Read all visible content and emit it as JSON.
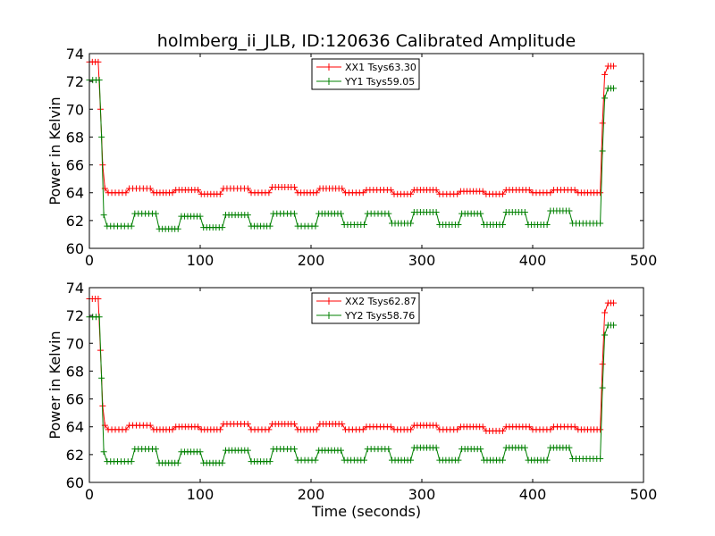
{
  "title": "holmberg_ii_JLB, ID:120636 Calibrated Amplitude",
  "chart_data": [
    {
      "type": "line",
      "title": "holmberg_ii_JLB, ID:120636 Calibrated Amplitude",
      "xlabel": "",
      "ylabel": "Power in Kelvin",
      "xlim": [
        0,
        500
      ],
      "ylim": [
        60,
        74
      ],
      "xticks": [
        "0",
        "100",
        "200",
        "300",
        "400",
        "500"
      ],
      "yticks": [
        "60",
        "62",
        "64",
        "66",
        "68",
        "70",
        "72",
        "74"
      ],
      "legend_position": "top-center",
      "grid": false,
      "series": [
        {
          "name": "XX1 Tsys63.30",
          "color": "#ff0000",
          "segments": [
            [
              0,
              73.4
            ],
            [
              8,
              73.4
            ],
            [
              10,
              70
            ],
            [
              12,
              66
            ],
            [
              14,
              64.3
            ],
            [
              17,
              64
            ],
            [
              33,
              64
            ],
            [
              36,
              64.3
            ],
            [
              55,
              64.3
            ],
            [
              58,
              64
            ],
            [
              75,
              64
            ],
            [
              78,
              64.2
            ],
            [
              98,
              64.2
            ],
            [
              101,
              63.9
            ],
            [
              118,
              63.9
            ],
            [
              121,
              64.3
            ],
            [
              143,
              64.3
            ],
            [
              146,
              64
            ],
            [
              162,
              64
            ],
            [
              165,
              64.4
            ],
            [
              185,
              64.4
            ],
            [
              188,
              64
            ],
            [
              205,
              64
            ],
            [
              208,
              64.3
            ],
            [
              228,
              64.3
            ],
            [
              231,
              64
            ],
            [
              247,
              64
            ],
            [
              250,
              64.2
            ],
            [
              272,
              64.2
            ],
            [
              275,
              63.9
            ],
            [
              290,
              63.9
            ],
            [
              293,
              64.2
            ],
            [
              313,
              64.2
            ],
            [
              316,
              63.9
            ],
            [
              332,
              63.9
            ],
            [
              335,
              64.1
            ],
            [
              355,
              64.1
            ],
            [
              358,
              63.9
            ],
            [
              373,
              63.9
            ],
            [
              376,
              64.2
            ],
            [
              397,
              64.2
            ],
            [
              400,
              64
            ],
            [
              416,
              64
            ],
            [
              419,
              64.2
            ],
            [
              438,
              64.2
            ],
            [
              441,
              64
            ],
            [
              461,
              64
            ],
            [
              463,
              69
            ],
            [
              465,
              72.5
            ],
            [
              468,
              73.1
            ],
            [
              473,
              73.1
            ]
          ]
        },
        {
          "name": "YY1 Tsys59.05",
          "color": "#008000",
          "segments": [
            [
              0,
              72.1
            ],
            [
              9,
              72.1
            ],
            [
              11,
              68
            ],
            [
              13,
              62.4
            ],
            [
              16,
              61.6
            ],
            [
              38,
              61.6
            ],
            [
              41,
              62.5
            ],
            [
              60,
              62.5
            ],
            [
              63,
              61.4
            ],
            [
              80,
              61.4
            ],
            [
              83,
              62.3
            ],
            [
              100,
              62.3
            ],
            [
              103,
              61.5
            ],
            [
              120,
              61.5
            ],
            [
              123,
              62.4
            ],
            [
              143,
              62.4
            ],
            [
              146,
              61.6
            ],
            [
              163,
              61.6
            ],
            [
              166,
              62.5
            ],
            [
              185,
              62.5
            ],
            [
              188,
              61.6
            ],
            [
              204,
              61.6
            ],
            [
              207,
              62.5
            ],
            [
              227,
              62.5
            ],
            [
              230,
              61.7
            ],
            [
              248,
              61.7
            ],
            [
              251,
              62.5
            ],
            [
              270,
              62.5
            ],
            [
              273,
              61.8
            ],
            [
              290,
              61.8
            ],
            [
              293,
              62.6
            ],
            [
              313,
              62.6
            ],
            [
              316,
              61.7
            ],
            [
              333,
              61.7
            ],
            [
              336,
              62.5
            ],
            [
              353,
              62.5
            ],
            [
              356,
              61.7
            ],
            [
              373,
              61.7
            ],
            [
              376,
              62.6
            ],
            [
              393,
              62.6
            ],
            [
              396,
              61.7
            ],
            [
              413,
              61.7
            ],
            [
              416,
              62.7
            ],
            [
              433,
              62.7
            ],
            [
              436,
              61.8
            ],
            [
              461,
              61.8
            ],
            [
              463,
              67
            ],
            [
              465,
              70.8
            ],
            [
              468,
              71.5
            ],
            [
              473,
              71.5
            ]
          ]
        }
      ]
    },
    {
      "type": "line",
      "title": "",
      "xlabel": "Time (seconds)",
      "ylabel": "Power in Kelvin",
      "xlim": [
        0,
        500
      ],
      "ylim": [
        60,
        74
      ],
      "xticks": [
        "0",
        "100",
        "200",
        "300",
        "400",
        "500"
      ],
      "yticks": [
        "60",
        "62",
        "64",
        "66",
        "68",
        "70",
        "72",
        "74"
      ],
      "legend_position": "top-center",
      "grid": false,
      "series": [
        {
          "name": "XX2 Tsys62.87",
          "color": "#ff0000",
          "segments": [
            [
              0,
              73.2
            ],
            [
              8,
              73.2
            ],
            [
              10,
              69.5
            ],
            [
              12,
              65.5
            ],
            [
              14,
              64.1
            ],
            [
              17,
              63.8
            ],
            [
              33,
              63.8
            ],
            [
              36,
              64.1
            ],
            [
              55,
              64.1
            ],
            [
              58,
              63.8
            ],
            [
              75,
              63.8
            ],
            [
              78,
              64
            ],
            [
              98,
              64
            ],
            [
              101,
              63.8
            ],
            [
              118,
              63.8
            ],
            [
              121,
              64.2
            ],
            [
              143,
              64.2
            ],
            [
              146,
              63.8
            ],
            [
              162,
              63.8
            ],
            [
              165,
              64.2
            ],
            [
              185,
              64.2
            ],
            [
              188,
              63.8
            ],
            [
              205,
              63.8
            ],
            [
              208,
              64.2
            ],
            [
              228,
              64.2
            ],
            [
              231,
              63.8
            ],
            [
              247,
              63.8
            ],
            [
              250,
              64
            ],
            [
              272,
              64
            ],
            [
              275,
              63.8
            ],
            [
              290,
              63.8
            ],
            [
              293,
              64.1
            ],
            [
              313,
              64.1
            ],
            [
              316,
              63.8
            ],
            [
              332,
              63.8
            ],
            [
              335,
              64
            ],
            [
              355,
              64
            ],
            [
              358,
              63.7
            ],
            [
              373,
              63.7
            ],
            [
              376,
              64
            ],
            [
              397,
              64
            ],
            [
              400,
              63.8
            ],
            [
              416,
              63.8
            ],
            [
              419,
              64
            ],
            [
              438,
              64
            ],
            [
              441,
              63.8
            ],
            [
              461,
              63.8
            ],
            [
              463,
              68.5
            ],
            [
              465,
              72.2
            ],
            [
              468,
              72.9
            ],
            [
              473,
              72.9
            ]
          ]
        },
        {
          "name": "YY2 Tsys58.76",
          "color": "#008000",
          "segments": [
            [
              0,
              71.9
            ],
            [
              9,
              71.9
            ],
            [
              11,
              67.5
            ],
            [
              13,
              62.2
            ],
            [
              16,
              61.5
            ],
            [
              38,
              61.5
            ],
            [
              41,
              62.4
            ],
            [
              60,
              62.4
            ],
            [
              63,
              61.4
            ],
            [
              80,
              61.4
            ],
            [
              83,
              62.2
            ],
            [
              100,
              62.2
            ],
            [
              103,
              61.4
            ],
            [
              120,
              61.4
            ],
            [
              123,
              62.3
            ],
            [
              143,
              62.3
            ],
            [
              146,
              61.5
            ],
            [
              163,
              61.5
            ],
            [
              166,
              62.4
            ],
            [
              185,
              62.4
            ],
            [
              188,
              61.6
            ],
            [
              204,
              61.6
            ],
            [
              207,
              62.3
            ],
            [
              227,
              62.3
            ],
            [
              230,
              61.6
            ],
            [
              248,
              61.6
            ],
            [
              251,
              62.4
            ],
            [
              270,
              62.4
            ],
            [
              273,
              61.6
            ],
            [
              290,
              61.6
            ],
            [
              293,
              62.5
            ],
            [
              313,
              62.5
            ],
            [
              316,
              61.6
            ],
            [
              333,
              61.6
            ],
            [
              336,
              62.4
            ],
            [
              353,
              62.4
            ],
            [
              356,
              61.6
            ],
            [
              373,
              61.6
            ],
            [
              376,
              62.5
            ],
            [
              393,
              62.5
            ],
            [
              396,
              61.6
            ],
            [
              413,
              61.6
            ],
            [
              416,
              62.5
            ],
            [
              433,
              62.5
            ],
            [
              436,
              61.7
            ],
            [
              461,
              61.7
            ],
            [
              463,
              66.8
            ],
            [
              465,
              70.6
            ],
            [
              468,
              71.3
            ],
            [
              473,
              71.3
            ]
          ]
        }
      ]
    }
  ]
}
